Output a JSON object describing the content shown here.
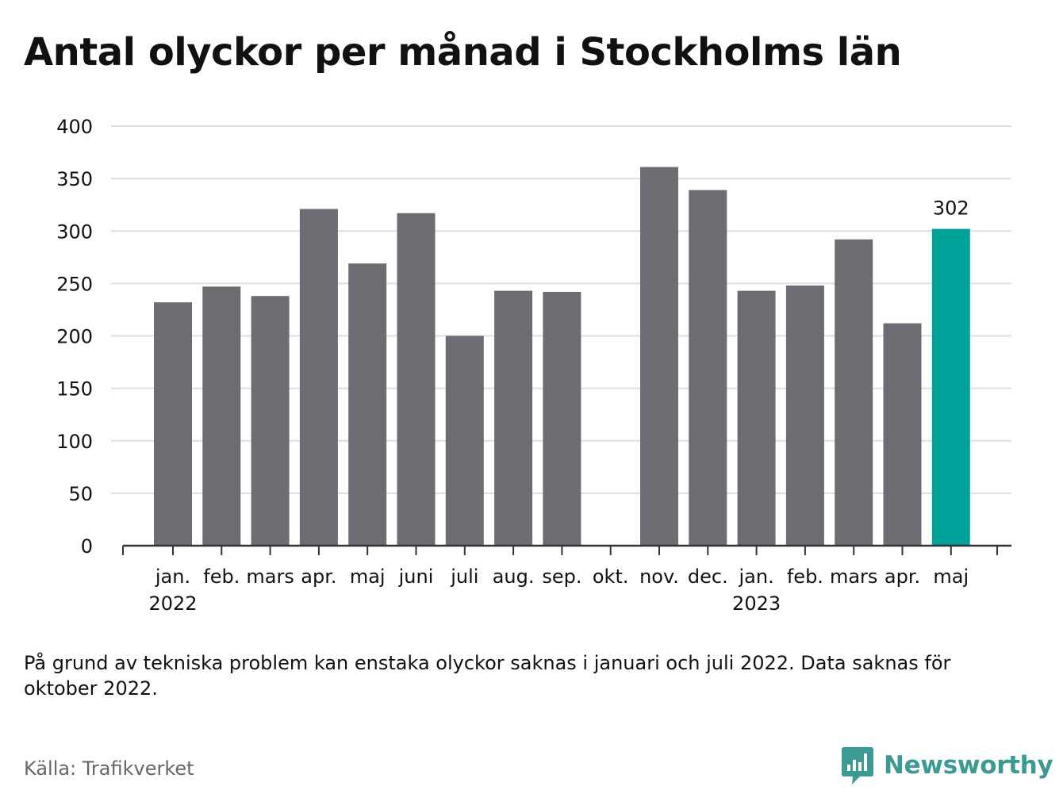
{
  "title": "Antal olyckor per månad i Stockholms län",
  "note": "På grund av tekniska problem kan enstaka olyckor saknas i januari och juli 2022. Data saknas för oktober 2022.",
  "source": "Källa: Trafikverket",
  "brand": {
    "name": "Newsworthy",
    "icon": "newsworthy-logo-icon"
  },
  "colors": {
    "bar": "#6d6c72",
    "highlight": "#00a39a",
    "grid": "#dddddd",
    "axis": "#333333"
  },
  "chart_data": {
    "type": "bar",
    "categories": [
      "jan.",
      "feb.",
      "mars",
      "apr.",
      "maj",
      "juni",
      "juli",
      "aug.",
      "sep.",
      "okt.",
      "nov.",
      "dec.",
      "jan.",
      "feb.",
      "mars",
      "apr.",
      "maj"
    ],
    "year_labels": [
      {
        "index": 0,
        "label": "2022"
      },
      {
        "index": 12,
        "label": "2023"
      }
    ],
    "values": [
      232,
      247,
      238,
      321,
      269,
      317,
      200,
      243,
      242,
      null,
      361,
      339,
      243,
      248,
      292,
      212,
      302
    ],
    "highlight_index": 16,
    "data_labels": [
      {
        "index": 16,
        "label": "302"
      }
    ],
    "yticks": [
      0,
      50,
      100,
      150,
      200,
      250,
      300,
      350,
      400
    ],
    "ylim": [
      0,
      400
    ],
    "grid": true
  }
}
